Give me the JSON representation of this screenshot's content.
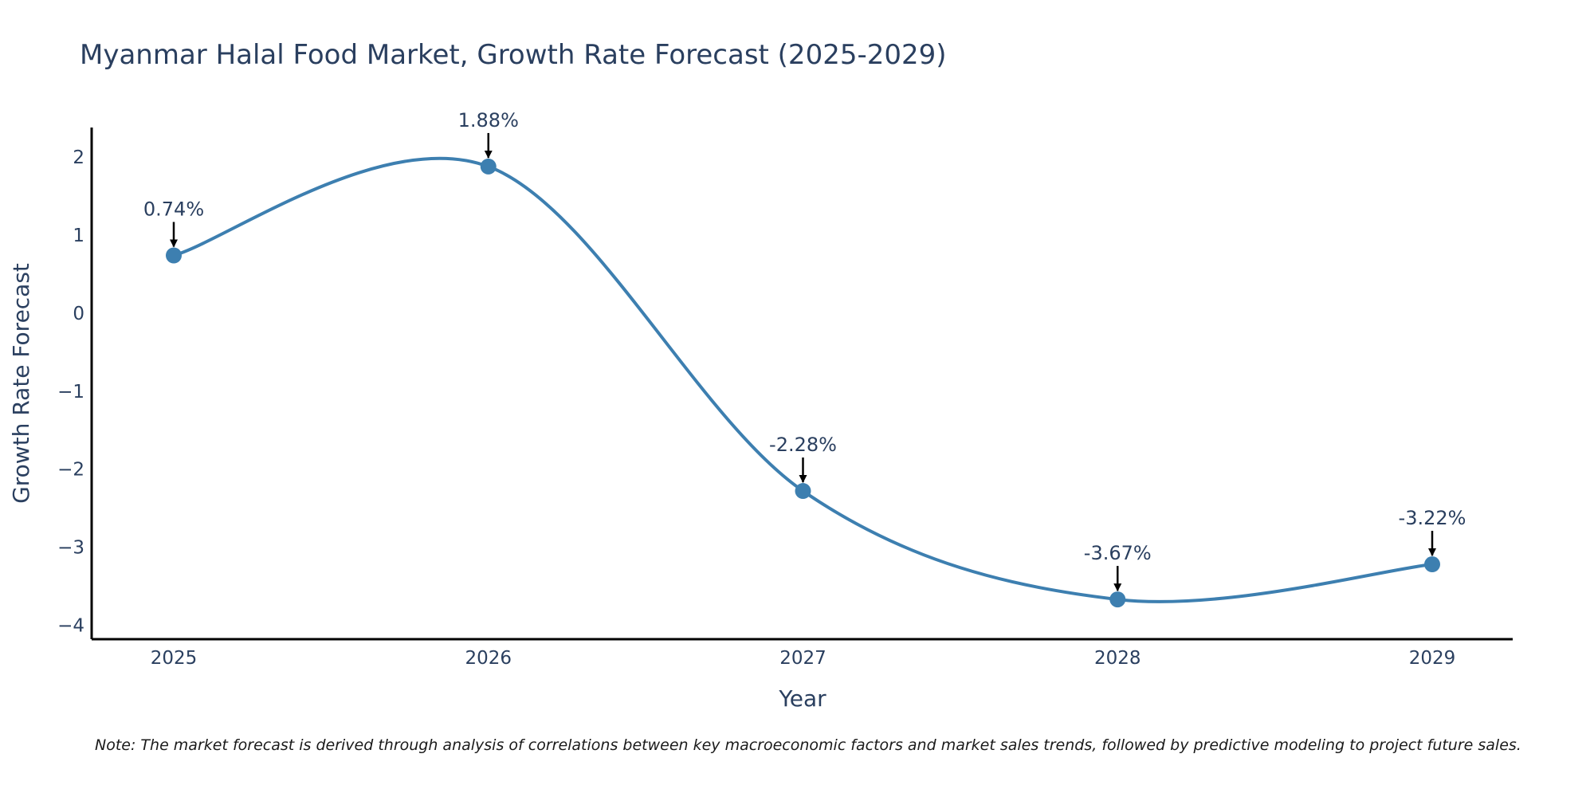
{
  "chart_data": {
    "type": "line",
    "title": "Myanmar Halal Food Market, Growth Rate Forecast (2025-2029)",
    "xlabel": "Year",
    "ylabel": "Growth Rate Forecast",
    "categories": [
      "2025",
      "2026",
      "2027",
      "2028",
      "2029"
    ],
    "values": [
      0.74,
      1.88,
      -2.28,
      -3.67,
      -3.22
    ],
    "annotations": [
      "0.74%",
      "1.88%",
      "-2.28%",
      "-3.67%",
      "-3.22%"
    ],
    "yticks": [
      2,
      1,
      0,
      -1,
      -2,
      -3,
      -4
    ],
    "ytick_labels": [
      "2",
      "1",
      "0",
      "−1",
      "−2",
      "−3",
      "−4"
    ],
    "ylim": [
      -4.18,
      2.38
    ],
    "line_shape": "spline",
    "grid": false,
    "series_color": "#3d7fb0",
    "note": "Note: The market forecast is derived through analysis of correlations between key macroeconomic factors and market sales trends, followed by predictive modeling to project future sales."
  }
}
